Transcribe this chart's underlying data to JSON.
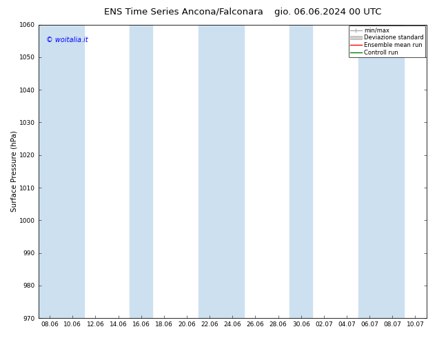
{
  "title": "ENS Time Series Ancona/Falconara",
  "title2": "gio. 06.06.2024 00 UTC",
  "ylabel": "Surface Pressure (hPa)",
  "ylim": [
    970,
    1060
  ],
  "yticks": [
    970,
    980,
    990,
    1000,
    1010,
    1020,
    1030,
    1040,
    1050,
    1060
  ],
  "xlabel_ticks": [
    "08.06",
    "10.06",
    "12.06",
    "14.06",
    "16.06",
    "18.06",
    "20.06",
    "22.06",
    "24.06",
    "26.06",
    "28.06",
    "30.06",
    "02.07",
    "04.07",
    "06.07",
    "08.07",
    "10.07"
  ],
  "background_color": "#ffffff",
  "plot_bg_color": "#ffffff",
  "band_color": "#cce0f0",
  "band_alpha": 1.0,
  "band_indices": [
    0,
    1,
    4,
    7,
    8,
    11,
    14,
    15
  ],
  "legend_entries": [
    "min/max",
    "Deviazione standard",
    "Ensemble mean run",
    "Controll run"
  ],
  "legend_colors": [
    "#aaaaaa",
    "#cccccc",
    "#ff0000",
    "#008000"
  ],
  "copyright_text": "© woitalia.it",
  "copyright_color": "#0000ff",
  "title_fontsize": 9.5,
  "tick_fontsize": 6.5,
  "ylabel_fontsize": 7.5
}
